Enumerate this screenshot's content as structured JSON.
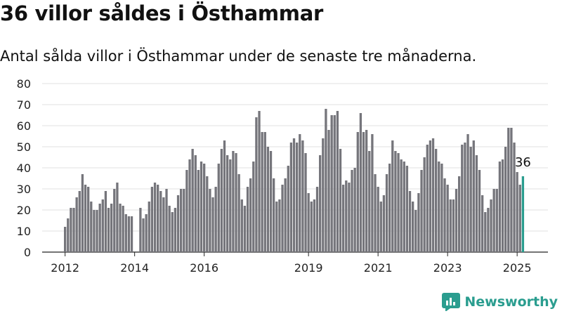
{
  "title": "36 villor såldes i Östhammar",
  "subtitle": "Antal sålda villor i Östhammar under de senaste tre månaderna.",
  "brand": {
    "name": "Newsworthy",
    "icon": "newsworthy-logo-icon"
  },
  "colors": {
    "bar": "#75757b",
    "highlight": "#2a9d8f",
    "brand": "#2a9d8f"
  },
  "chart_data": {
    "type": "bar",
    "title": "",
    "xlabel": "",
    "ylabel": "",
    "ylim": [
      0,
      80
    ],
    "yticks": [
      "0",
      "10",
      "20",
      "30",
      "40",
      "50",
      "60",
      "70",
      "80"
    ],
    "xticks": [
      "2012",
      "2014",
      "2016",
      "2019",
      "2021",
      "2023",
      "2025"
    ],
    "grid": true,
    "legend": "none",
    "highlight_label": "36",
    "categories": [
      "2012-01",
      "2012-02",
      "2012-03",
      "2012-04",
      "2012-05",
      "2012-06",
      "2012-07",
      "2012-08",
      "2012-09",
      "2012-10",
      "2012-11",
      "2012-12",
      "2013-01",
      "2013-02",
      "2013-03",
      "2013-04",
      "2013-05",
      "2013-06",
      "2013-07",
      "2013-08",
      "2013-09",
      "2013-10",
      "2013-11",
      "2013-12",
      "2014-01",
      "2014-02",
      "2014-03",
      "2014-04",
      "2014-05",
      "2014-06",
      "2014-07",
      "2014-08",
      "2014-09",
      "2014-10",
      "2014-11",
      "2014-12",
      "2015-01",
      "2015-02",
      "2015-03",
      "2015-04",
      "2015-05",
      "2015-06",
      "2015-07",
      "2015-08",
      "2015-09",
      "2015-10",
      "2015-11",
      "2015-12",
      "2016-01",
      "2016-02",
      "2016-03",
      "2016-04",
      "2016-05",
      "2016-06",
      "2016-07",
      "2016-08",
      "2016-09",
      "2016-10",
      "2016-11",
      "2016-12",
      "2017-01",
      "2017-02",
      "2017-03",
      "2017-04",
      "2017-05",
      "2017-06",
      "2017-07",
      "2017-08",
      "2017-09",
      "2017-10",
      "2017-11",
      "2017-12",
      "2018-01",
      "2018-02",
      "2018-03",
      "2018-04",
      "2018-05",
      "2018-06",
      "2018-07",
      "2018-08",
      "2018-09",
      "2018-10",
      "2018-11",
      "2018-12",
      "2019-01",
      "2019-02",
      "2019-03",
      "2019-04",
      "2019-05",
      "2019-06",
      "2019-07",
      "2019-08",
      "2019-09",
      "2019-10",
      "2019-11",
      "2019-12",
      "2020-01",
      "2020-02",
      "2020-03",
      "2020-04",
      "2020-05",
      "2020-06",
      "2020-07",
      "2020-08",
      "2020-09",
      "2020-10",
      "2020-11",
      "2020-12",
      "2021-01",
      "2021-02",
      "2021-03",
      "2021-04",
      "2021-05",
      "2021-06",
      "2021-07",
      "2021-08",
      "2021-09",
      "2021-10",
      "2021-11",
      "2021-12",
      "2022-01",
      "2022-02",
      "2022-03",
      "2022-04",
      "2022-05",
      "2022-06",
      "2022-07",
      "2022-08",
      "2022-09",
      "2022-10",
      "2022-11",
      "2022-12",
      "2023-01",
      "2023-02",
      "2023-03",
      "2023-04",
      "2023-05",
      "2023-06",
      "2023-07",
      "2023-08",
      "2023-09",
      "2023-10",
      "2023-11",
      "2023-12",
      "2024-01",
      "2024-02",
      "2024-03",
      "2024-04",
      "2024-05",
      "2024-06",
      "2024-07",
      "2024-08",
      "2024-09",
      "2024-10",
      "2024-11",
      "2024-12",
      "2025-01",
      "2025-02",
      "2025-03"
    ],
    "series": [
      {
        "values": [
          12,
          16,
          21,
          21,
          26,
          29,
          37,
          32,
          31,
          24,
          20,
          20,
          23,
          25,
          29,
          21,
          23,
          30,
          33,
          23,
          22,
          18,
          17,
          17,
          null,
          null,
          21,
          16,
          18,
          24,
          31,
          33,
          32,
          29,
          26,
          30,
          22,
          19,
          21,
          27,
          30,
          30,
          39,
          44,
          49,
          46,
          39,
          43,
          42,
          36,
          30,
          26,
          31,
          42,
          49,
          53,
          46,
          44,
          48,
          47,
          37,
          25,
          22,
          31,
          35,
          43,
          64,
          67,
          57,
          57,
          50,
          48,
          35,
          24,
          25,
          32,
          35,
          41,
          52,
          54,
          52,
          56,
          53,
          47,
          28,
          24,
          25,
          31,
          46,
          54,
          68,
          58,
          65,
          65,
          67,
          49,
          32,
          34,
          33,
          39,
          40,
          57,
          66,
          57,
          58,
          48,
          56,
          37,
          31,
          24,
          27,
          37,
          42,
          53,
          48,
          47,
          44,
          43,
          41,
          29,
          24,
          20,
          28,
          39,
          45,
          51,
          53,
          54,
          49,
          43,
          42,
          35,
          32,
          25,
          25,
          30,
          36,
          51,
          52,
          56,
          50,
          53,
          46,
          39,
          27,
          19,
          21,
          25,
          30,
          30,
          43,
          44,
          50,
          59,
          59,
          52,
          38,
          32,
          36
        ]
      }
    ]
  }
}
